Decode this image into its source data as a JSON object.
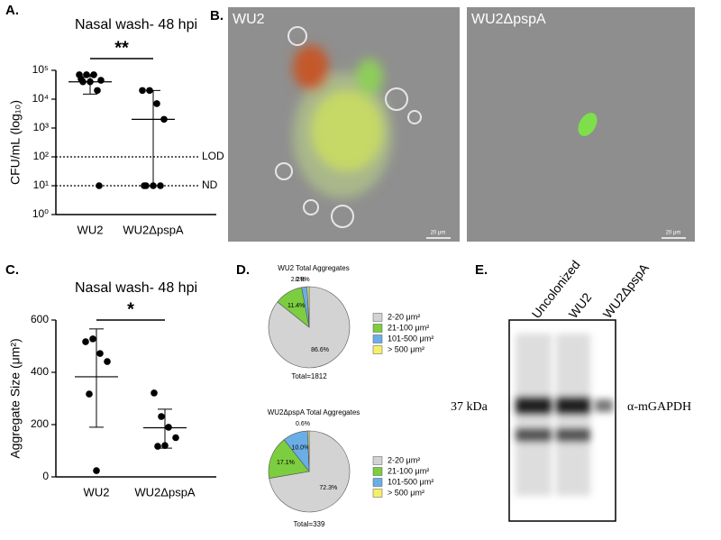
{
  "chart_data": [
    {
      "type": "dot",
      "panel": "A.",
      "title": "Nasal wash- 48 hpi",
      "y_label": "CFU/mL (log₁₀)",
      "categories": [
        "WU2",
        "WU2ΔpspA"
      ],
      "points": [
        [
          70000,
          70000,
          70000,
          45000,
          40000,
          40000,
          20000,
          50000,
          10
        ],
        [
          20000,
          20000,
          7000,
          2000,
          10,
          10,
          10,
          10
        ]
      ],
      "center": [
        40000,
        2000
      ],
      "error": [
        [
          15000,
          70000
        ],
        [
          10,
          20000
        ]
      ],
      "log_scale": true,
      "ylim": [
        1,
        100000
      ],
      "yticks": [
        {
          "value": 1,
          "label": "10⁰"
        },
        {
          "value": 10,
          "label": "10¹"
        },
        {
          "value": 100,
          "label": "10²"
        },
        {
          "value": 1000,
          "label": "10³"
        },
        {
          "value": 10000,
          "label": "10⁴"
        },
        {
          "value": 100000,
          "label": "10⁵"
        }
      ],
      "reference_lines": [
        {
          "value": 100,
          "label": "LOD"
        },
        {
          "value": 10,
          "label": "ND"
        }
      ],
      "significance": "**",
      "color": "#000000"
    },
    {
      "type": "dot",
      "panel": "C.",
      "title": "Nasal wash- 48 hpi",
      "y_label": "Aggregate Size (μm²)",
      "categories": [
        "WU2",
        "WU2ΔpspA"
      ],
      "points": [
        [
          517,
          528,
          472,
          441,
          317,
          24
        ],
        [
          321,
          231,
          190,
          150,
          117,
          120
        ]
      ],
      "center": [
        383,
        188
      ],
      "error": [
        [
          190,
          566
        ],
        [
          110,
          259
        ]
      ],
      "log_scale": false,
      "ylim": [
        0,
        600
      ],
      "yticks": [
        0,
        200,
        400,
        600
      ],
      "reference_lines": [],
      "significance": "*",
      "color": "#000000"
    },
    {
      "type": "pie",
      "panel": "D.",
      "title": "WU2 Total Aggregates",
      "total": "Total=1812",
      "categories": [
        "2-20 μm²",
        "21-100 μm²",
        "101-500 μm²",
        "> 500 μm²"
      ],
      "values": [
        86.6,
        11.4,
        2.2,
        0.8
      ],
      "value_labels": [
        "86.6%",
        "11.4%",
        "2.2%",
        "0.8%"
      ],
      "colors": [
        "#d3d3d3",
        "#7ccd3f",
        "#6aaee8",
        "#f5f06a"
      ]
    },
    {
      "type": "pie",
      "title": "WU2ΔpspA Total Aggregates",
      "total": "Total=339",
      "categories": [
        "2-20 μm²",
        "21-100 μm²",
        "101-500 μm²",
        "> 500 μm²"
      ],
      "values": [
        72.3,
        17.1,
        10.0,
        0.6
      ],
      "value_labels": [
        "72.3%",
        "17.1%",
        "10.0%",
        "0.6%"
      ],
      "colors": [
        "#d3d3d3",
        "#7ccd3f",
        "#6aaee8",
        "#f5f06a"
      ]
    }
  ],
  "microscopy": {
    "panel": "B.",
    "labels": [
      "WU2",
      "WU2ΔpspA"
    ],
    "scale_bars": [
      "20 μm",
      "20 μm"
    ]
  },
  "blot": {
    "panel": "E.",
    "lanes": [
      "Uncolonized",
      "WU2",
      "WU2ΔpspA"
    ],
    "marker": "37 kDa",
    "target": "α-mGAPDH"
  }
}
